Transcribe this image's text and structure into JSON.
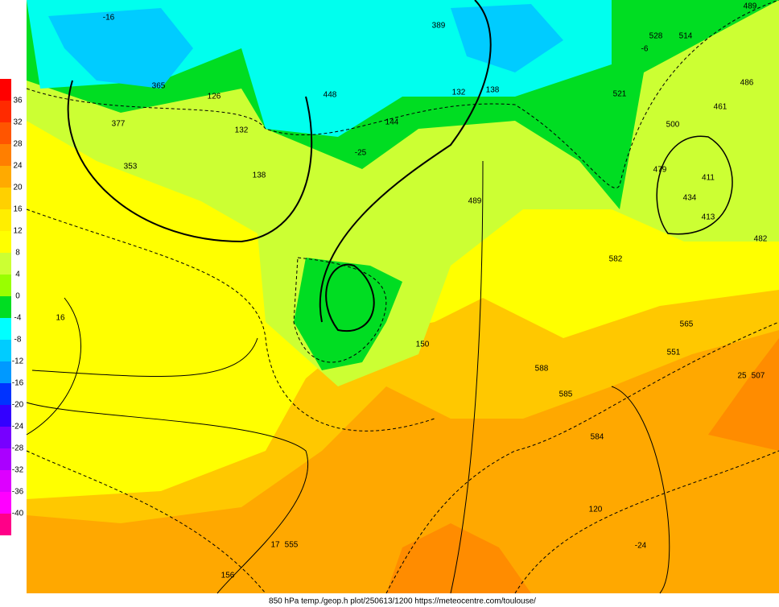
{
  "legend": {
    "labels": [
      "36",
      "32",
      "28",
      "24",
      "20",
      "16",
      "12",
      "8",
      "4",
      "0",
      "-4",
      "-8",
      "-12",
      "-16",
      "-20",
      "-24",
      "-28",
      "-32",
      "-36",
      "-40"
    ]
  },
  "map_labels": [
    "16",
    "150",
    "156",
    "132",
    "138",
    "144",
    "120",
    "-24",
    "-25",
    "489",
    "585",
    "584",
    "588",
    "582",
    "551",
    "565",
    "507",
    "25",
    "479",
    "411",
    "413",
    "434",
    "500",
    "521",
    "528",
    "514",
    "486",
    "461",
    "482",
    "489",
    "377",
    "365",
    "353",
    "389",
    "132",
    "138",
    "126",
    "448",
    "-16",
    "-6",
    "555",
    "17"
  ],
  "footer": "850 hPa temp./geop.h plot/250613/1200 https://meteocentre.com/toulouse/"
}
